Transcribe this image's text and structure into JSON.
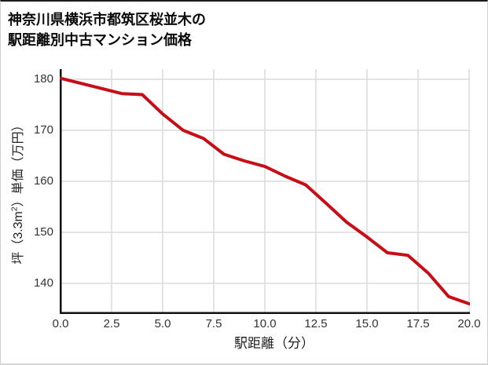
{
  "title": {
    "line1": "神奈川県横浜市都筑区桜並木の",
    "line2": "駅距離別中古マンション価格"
  },
  "chart_data": {
    "type": "line",
    "title": "神奈川県横浜市都筑区桜並木の駅距離別中古マンション価格",
    "xlabel": "駅距離（分）",
    "ylabel": "坪（3.3m²）単価（万円）",
    "x": [
      0,
      1,
      2,
      3,
      4,
      5,
      6,
      7,
      8,
      9,
      10,
      11,
      12,
      13,
      14,
      15,
      16,
      17,
      18,
      19,
      20
    ],
    "values": [
      180.2,
      179.2,
      178.2,
      177.2,
      177.0,
      173.2,
      170.0,
      168.4,
      165.3,
      164.0,
      162.9,
      161.0,
      159.3,
      155.7,
      152.0,
      149.1,
      146.0,
      145.5,
      142.0,
      137.4,
      136.0
    ],
    "x_tick_labels": [
      "0.0",
      "2.5",
      "5.0",
      "7.5",
      "10.0",
      "12.5",
      "15.0",
      "17.5",
      "20.0"
    ],
    "x_ticks": [
      0,
      2.5,
      5,
      7.5,
      10,
      12.5,
      15,
      17.5,
      20
    ],
    "y_ticks": [
      140,
      150,
      160,
      170,
      180
    ],
    "y_tick_labels": [
      "140",
      "150",
      "160",
      "170",
      "180"
    ],
    "xlim": [
      0,
      20
    ],
    "ylim": [
      134,
      182
    ],
    "grid": true,
    "legend_position": "none",
    "line_color": "#c70d16",
    "grid_color": "#dcdcdc",
    "spine_color": "#111111",
    "tick_label_color": "#333333"
  }
}
